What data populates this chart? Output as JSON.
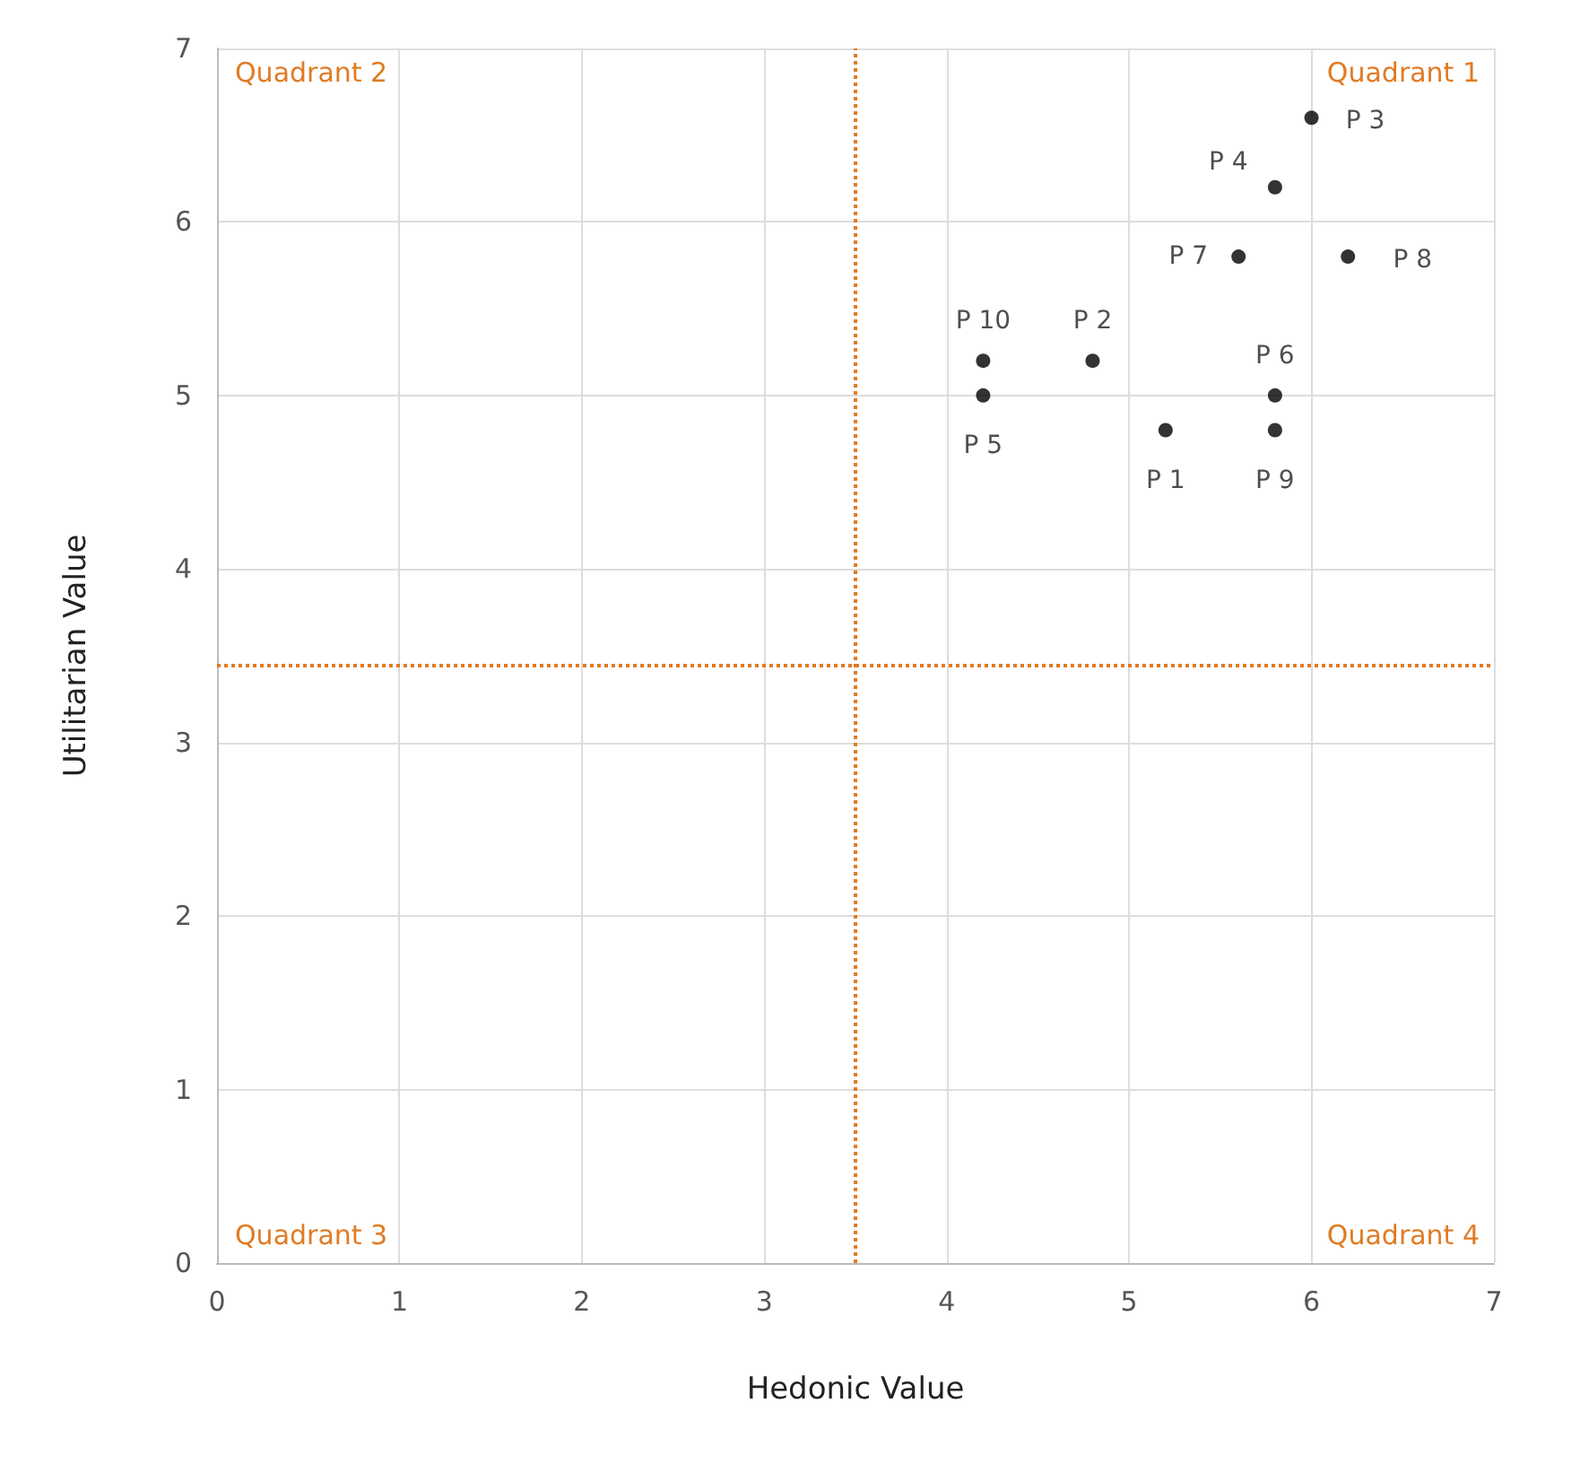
{
  "chart_data": {
    "type": "scatter",
    "xlabel": "Hedonic Value",
    "ylabel": "Utilitarian Value",
    "x": [
      5.2,
      4.8,
      6.0,
      5.8,
      4.2,
      5.8,
      5.6,
      6.2,
      5.8,
      4.2
    ],
    "series": [
      {
        "color": "#000000",
        "values": [
          4.8,
          5.2,
          6.6,
          6.2,
          5.0,
          5.0,
          5.8,
          5.8,
          4.8,
          5.2
        ]
      }
    ],
    "xlim": [
      0,
      7
    ],
    "xticks": [
      0,
      1,
      2,
      3,
      4,
      5,
      6,
      7
    ],
    "ylim": [
      0,
      7
    ],
    "yticks": [
      0,
      1,
      2,
      3,
      4,
      5,
      6,
      7
    ],
    "grid": true,
    "marker": "circle",
    "ref_lines": [
      {
        "axis": "x",
        "value": 3.5,
        "color": "#e07b24",
        "line_style": "dotted"
      },
      {
        "axis": "y",
        "value": 3.45,
        "color": "#e07b24",
        "line_style": "dotted"
      }
    ],
    "annotations": [
      "Quadrant 2",
      "Quadrant 1",
      "Quadrant 3",
      "Quadrant 4",
      {
        "text": "P 1",
        "x": 5.2,
        "y": 4.8
      },
      {
        "text": "P 2",
        "x": 4.8,
        "y": 5.2
      },
      {
        "text": "P 3",
        "x": 6.0,
        "y": 6.6
      },
      {
        "text": "P 4",
        "x": 5.8,
        "y": 6.2
      },
      {
        "text": "P 5",
        "x": 4.2,
        "y": 5.0
      },
      {
        "text": "P 6",
        "x": 5.8,
        "y": 5.0
      },
      {
        "text": "P 7",
        "x": 5.6,
        "y": 5.8
      },
      {
        "text": "P 8",
        "x": 6.2,
        "y": 5.8
      },
      {
        "text": "P 9",
        "x": 5.8,
        "y": 4.8
      },
      {
        "text": "P 10",
        "x": 4.2,
        "y": 5.2
      }
    ]
  }
}
